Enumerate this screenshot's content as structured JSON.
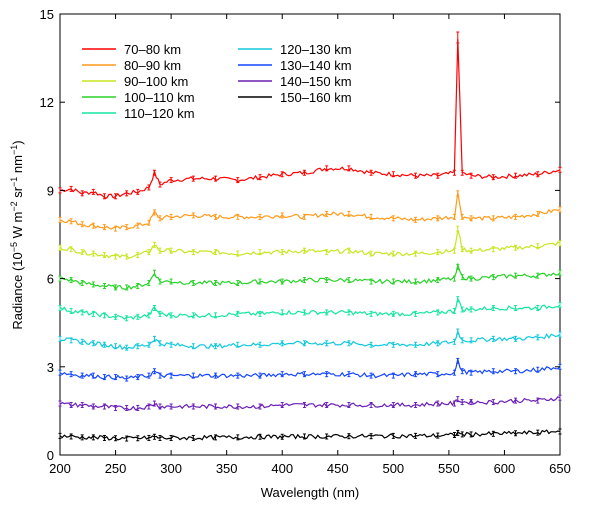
{
  "chart_data": {
    "type": "line",
    "title": "",
    "xlabel": "Wavelength (nm)",
    "ylabel_parts": [
      "Radiance (10",
      "−5",
      " W m",
      "−2",
      " sr",
      "−1",
      " nm",
      "−1",
      ")"
    ],
    "xlim": [
      200,
      650
    ],
    "ylim": [
      0,
      15
    ],
    "x_ticks": [
      200,
      250,
      300,
      350,
      400,
      450,
      500,
      550,
      600,
      650
    ],
    "y_ticks": [
      0,
      3,
      6,
      9,
      12,
      15
    ],
    "error_bars": true,
    "grid": false,
    "legend_position": "top-left",
    "x": [
      200,
      210,
      220,
      230,
      240,
      250,
      260,
      270,
      280,
      285,
      290,
      300,
      320,
      340,
      360,
      380,
      400,
      420,
      440,
      460,
      480,
      500,
      520,
      540,
      555,
      558,
      562,
      570,
      590,
      610,
      630,
      650
    ],
    "series": [
      {
        "name": "70–80 km",
        "color": "#ff0000",
        "values": [
          9.0,
          9.05,
          8.9,
          8.95,
          8.8,
          8.8,
          8.9,
          8.95,
          9.1,
          9.6,
          9.2,
          9.35,
          9.4,
          9.4,
          9.35,
          9.45,
          9.55,
          9.6,
          9.75,
          9.75,
          9.6,
          9.55,
          9.5,
          9.5,
          9.6,
          14.2,
          9.6,
          9.5,
          9.45,
          9.5,
          9.55,
          9.7
        ]
      },
      {
        "name": "80–90 km",
        "color": "#ff9a1a",
        "values": [
          8.0,
          7.95,
          7.85,
          7.8,
          7.75,
          7.7,
          7.75,
          7.8,
          7.9,
          8.25,
          8.05,
          8.1,
          8.15,
          8.1,
          8.1,
          8.1,
          8.15,
          8.1,
          8.2,
          8.2,
          8.1,
          8.05,
          8.0,
          8.05,
          8.1,
          8.9,
          8.1,
          8.05,
          8.05,
          8.1,
          8.2,
          8.35
        ]
      },
      {
        "name": "90–100 km",
        "color": "#c8e61e",
        "values": [
          7.05,
          7.0,
          6.9,
          6.85,
          6.8,
          6.75,
          6.75,
          6.8,
          6.9,
          7.15,
          6.95,
          6.95,
          6.9,
          6.9,
          6.85,
          6.9,
          6.9,
          6.95,
          6.9,
          6.95,
          6.85,
          6.85,
          6.85,
          6.9,
          6.95,
          7.7,
          7.0,
          6.95,
          7.0,
          7.05,
          7.1,
          7.2
        ]
      },
      {
        "name": "100–110 km",
        "color": "#28d228",
        "values": [
          6.0,
          5.95,
          5.85,
          5.8,
          5.75,
          5.7,
          5.7,
          5.75,
          5.85,
          6.2,
          5.9,
          5.9,
          5.85,
          5.85,
          5.85,
          5.9,
          5.9,
          5.95,
          5.95,
          5.95,
          5.9,
          5.9,
          5.9,
          5.95,
          6.0,
          6.4,
          6.05,
          6.0,
          6.05,
          6.1,
          6.1,
          6.2
        ]
      },
      {
        "name": "110–120 km",
        "color": "#14e6a0",
        "values": [
          5.0,
          4.9,
          4.85,
          4.8,
          4.75,
          4.7,
          4.65,
          4.7,
          4.75,
          5.0,
          4.8,
          4.75,
          4.75,
          4.75,
          4.8,
          4.8,
          4.85,
          4.85,
          4.85,
          4.85,
          4.8,
          4.8,
          4.8,
          4.85,
          4.9,
          5.3,
          4.95,
          4.95,
          5.0,
          5.0,
          5.0,
          5.1
        ]
      },
      {
        "name": "120–130 km",
        "color": "#10c8dc",
        "values": [
          3.95,
          3.9,
          3.85,
          3.8,
          3.75,
          3.7,
          3.65,
          3.7,
          3.75,
          3.95,
          3.8,
          3.75,
          3.7,
          3.7,
          3.75,
          3.75,
          3.8,
          3.8,
          3.8,
          3.8,
          3.75,
          3.75,
          3.75,
          3.8,
          3.85,
          4.2,
          3.9,
          3.9,
          3.95,
          3.95,
          4.0,
          4.1
        ]
      },
      {
        "name": "130–140 km",
        "color": "#1446ff",
        "values": [
          2.8,
          2.75,
          2.7,
          2.7,
          2.65,
          2.65,
          2.6,
          2.65,
          2.7,
          2.85,
          2.7,
          2.7,
          2.7,
          2.7,
          2.7,
          2.7,
          2.75,
          2.75,
          2.75,
          2.75,
          2.7,
          2.7,
          2.75,
          2.75,
          2.8,
          3.2,
          2.85,
          2.8,
          2.85,
          2.85,
          2.9,
          3.0
        ]
      },
      {
        "name": "140–150 km",
        "color": "#6a1eb4",
        "values": [
          1.75,
          1.7,
          1.7,
          1.65,
          1.65,
          1.6,
          1.6,
          1.6,
          1.65,
          1.75,
          1.65,
          1.65,
          1.65,
          1.65,
          1.65,
          1.65,
          1.7,
          1.7,
          1.7,
          1.7,
          1.7,
          1.7,
          1.7,
          1.75,
          1.75,
          1.9,
          1.8,
          1.8,
          1.8,
          1.85,
          1.85,
          1.95
        ]
      },
      {
        "name": "150–160 km",
        "color": "#000000",
        "values": [
          0.65,
          0.63,
          0.6,
          0.6,
          0.58,
          0.57,
          0.56,
          0.57,
          0.58,
          0.62,
          0.58,
          0.58,
          0.58,
          0.6,
          0.6,
          0.62,
          0.62,
          0.63,
          0.63,
          0.64,
          0.64,
          0.65,
          0.65,
          0.66,
          0.68,
          0.75,
          0.7,
          0.7,
          0.72,
          0.74,
          0.76,
          0.8
        ]
      }
    ]
  }
}
